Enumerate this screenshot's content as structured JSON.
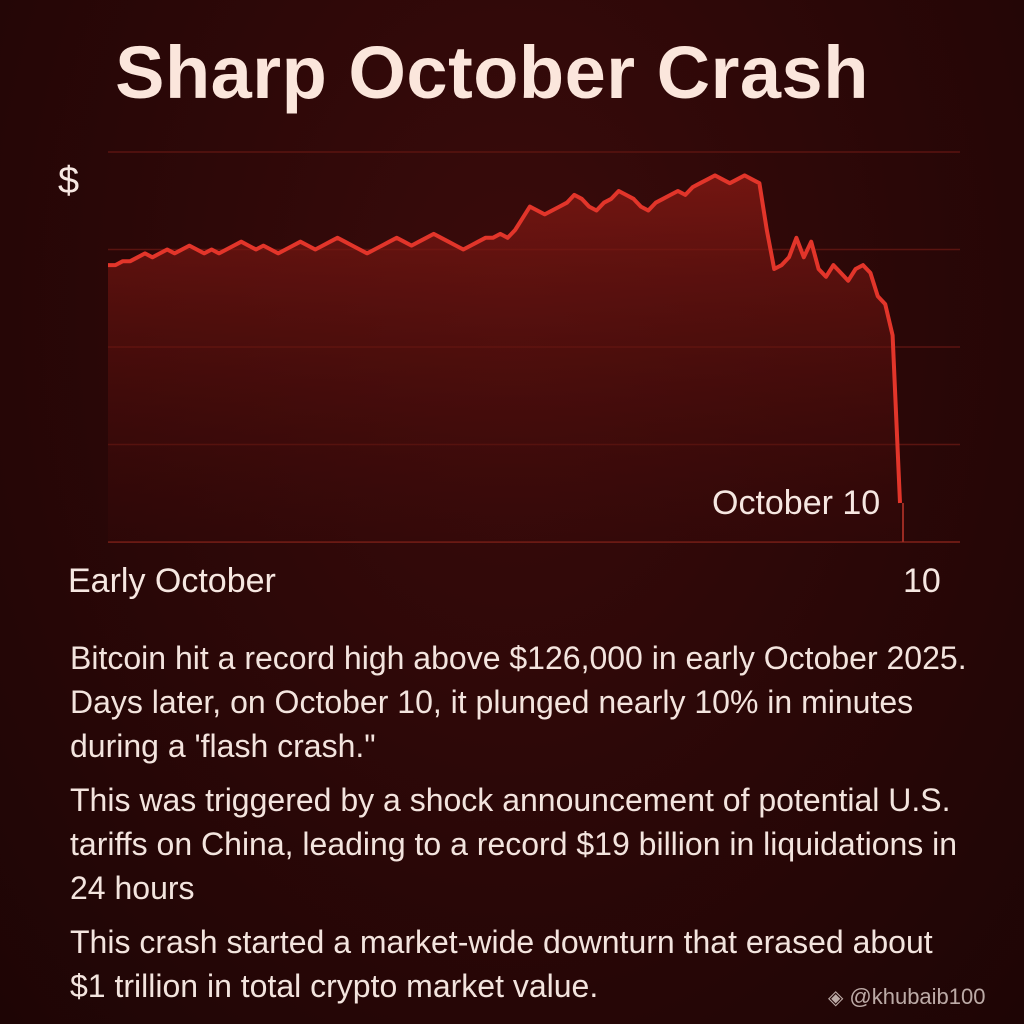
{
  "title": "Sharp October Crash",
  "chart_data": {
    "type": "area",
    "ylabel": "$",
    "xlabel": "",
    "x_tick_labels": [
      "Early October",
      "10"
    ],
    "annotation": "October 10",
    "grid": true,
    "ylim": [
      0,
      100
    ],
    "values": [
      71,
      71,
      72,
      72,
      73,
      74,
      73,
      74,
      75,
      74,
      75,
      76,
      75,
      74,
      75,
      74,
      75,
      76,
      77,
      76,
      75,
      76,
      75,
      74,
      75,
      76,
      77,
      76,
      75,
      76,
      77,
      78,
      77,
      76,
      75,
      74,
      75,
      76,
      77,
      78,
      77,
      76,
      77,
      78,
      79,
      78,
      77,
      76,
      75,
      76,
      77,
      78,
      78,
      79,
      78,
      80,
      83,
      86,
      85,
      84,
      85,
      86,
      87,
      89,
      88,
      86,
      85,
      87,
      88,
      90,
      89,
      88,
      86,
      85,
      87,
      88,
      89,
      90,
      89,
      91,
      92,
      93,
      94,
      93,
      92,
      93,
      94,
      93,
      92,
      80,
      70,
      71,
      73,
      78,
      73,
      77,
      70,
      68,
      71,
      69,
      67,
      70,
      71,
      69,
      63,
      61,
      53,
      10
    ],
    "series_color": "#e2352a"
  },
  "paragraphs": [
    "Bitcoin hit a record high above $126,000 in early October 2025. Days later, on October 10, it plunged nearly 10% in minutes during a 'flash crash.\"",
    "This was triggered by a shock announcement of potential U.S. tariffs on China, leading to a record $19 billion in liquidations in 24 hours",
    "This crash started a market-wide downturn that erased about $1 trillion in total crypto market value."
  ],
  "watermark": "@khubaib100"
}
